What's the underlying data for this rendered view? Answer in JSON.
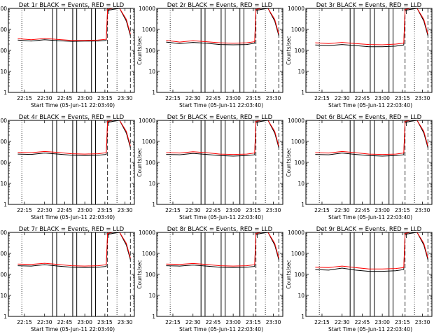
{
  "figure": {
    "x_axis_title": "Start Time (05-Jun-11 22:03:40)",
    "y_axis_title": "Counts/sec",
    "x_tick_labels": [
      "22:15",
      "22:30",
      "22:45",
      "23:00",
      "23:15",
      "23:30"
    ],
    "y_tick_labels": [
      "1",
      "10",
      "100",
      "1000",
      "10000"
    ],
    "colors": {
      "events": "#000000",
      "lld": "#ff0000",
      "axes": "#000000",
      "background": "#ffffff"
    }
  },
  "chart_data": [
    {
      "type": "line",
      "title": "Det 1r BLACK = Events, RED = LLD",
      "xlabel": "Start Time (05-Jun-11 22:03:40)",
      "ylabel": "Counts/sec",
      "y_scale": "log",
      "ylim": [
        1,
        10000
      ],
      "x": [
        "22:10",
        "22:20",
        "22:30",
        "22:40",
        "22:50",
        "23:00",
        "23:10",
        "23:16",
        "23:17",
        "23:21",
        "23:26",
        "23:31",
        "23:34"
      ],
      "series": [
        {
          "color": "#000000",
          "values": [
            310,
            280,
            320,
            290,
            270,
            275,
            280,
            300,
            8000,
            9000,
            10000,
            2500,
            500
          ]
        },
        {
          "color": "#ff0000",
          "values": [
            360,
            320,
            370,
            330,
            300,
            300,
            310,
            340,
            9000,
            10000,
            10000,
            3000,
            600
          ]
        }
      ]
    },
    {
      "type": "line",
      "title": "Det 2r BLACK = Events, RED = LLD",
      "xlabel": "Start Time (05-Jun-11 22:03:40)",
      "ylabel": "Counts/sec",
      "y_scale": "log",
      "ylim": [
        1,
        10000
      ],
      "x": [
        "22:10",
        "22:20",
        "22:30",
        "22:40",
        "22:50",
        "23:00",
        "23:10",
        "23:16",
        "23:17",
        "23:21",
        "23:26",
        "23:31",
        "23:34"
      ],
      "series": [
        {
          "color": "#000000",
          "values": [
            250,
            210,
            240,
            220,
            190,
            185,
            190,
            220,
            8000,
            9000,
            10000,
            2500,
            500
          ]
        },
        {
          "color": "#ff0000",
          "values": [
            300,
            250,
            290,
            260,
            230,
            220,
            230,
            260,
            9000,
            10000,
            10000,
            3000,
            600
          ]
        }
      ]
    },
    {
      "type": "line",
      "title": "Det 3r BLACK = Events, RED = LLD",
      "xlabel": "Start Time (05-Jun-11 22:03:40)",
      "ylabel": "Counts/sec",
      "y_scale": "log",
      "ylim": [
        1,
        10000
      ],
      "x": [
        "22:10",
        "22:20",
        "22:30",
        "22:40",
        "22:50",
        "23:00",
        "23:10",
        "23:16",
        "23:17",
        "23:21",
        "23:26",
        "23:31",
        "23:34"
      ],
      "series": [
        {
          "color": "#000000",
          "values": [
            180,
            170,
            190,
            170,
            150,
            150,
            160,
            180,
            8000,
            9000,
            10000,
            2500,
            500
          ]
        },
        {
          "color": "#ff0000",
          "values": [
            230,
            210,
            240,
            210,
            190,
            185,
            200,
            220,
            9000,
            10000,
            10000,
            3000,
            600
          ]
        }
      ]
    },
    {
      "type": "line",
      "title": "Det 4r BLACK = Events, RED = LLD",
      "xlabel": "Start Time (05-Jun-11 22:03:40)",
      "ylabel": "Counts/sec",
      "y_scale": "log",
      "ylim": [
        1,
        10000
      ],
      "x": [
        "22:10",
        "22:20",
        "22:30",
        "22:40",
        "22:50",
        "23:00",
        "23:10",
        "23:16",
        "23:17",
        "23:21",
        "23:26",
        "23:31",
        "23:34"
      ],
      "series": [
        {
          "color": "#000000",
          "values": [
            250,
            240,
            280,
            250,
            220,
            210,
            220,
            240,
            8000,
            9000,
            10000,
            2500,
            500
          ]
        },
        {
          "color": "#ff0000",
          "values": [
            300,
            290,
            330,
            300,
            260,
            250,
            260,
            290,
            9000,
            10000,
            10000,
            3000,
            600
          ]
        }
      ]
    },
    {
      "type": "line",
      "title": "Det 5r BLACK = Events, RED = LLD",
      "xlabel": "Start Time (05-Jun-11 22:03:40)",
      "ylabel": "Counts/sec",
      "y_scale": "log",
      "ylim": [
        1,
        10000
      ],
      "x": [
        "22:10",
        "22:20",
        "22:30",
        "22:40",
        "22:50",
        "23:00",
        "23:10",
        "23:16",
        "23:17",
        "23:21",
        "23:26",
        "23:31",
        "23:34"
      ],
      "series": [
        {
          "color": "#000000",
          "values": [
            240,
            230,
            270,
            240,
            210,
            200,
            210,
            230,
            8000,
            9000,
            10000,
            2500,
            500
          ]
        },
        {
          "color": "#ff0000",
          "values": [
            290,
            280,
            320,
            290,
            250,
            240,
            250,
            280,
            9000,
            10000,
            10000,
            3000,
            600
          ]
        }
      ]
    },
    {
      "type": "line",
      "title": "Det 6r BLACK = Events, RED = LLD",
      "xlabel": "Start Time (05-Jun-11 22:03:40)",
      "ylabel": "Counts/sec",
      "y_scale": "log",
      "ylim": [
        1,
        10000
      ],
      "x": [
        "22:10",
        "22:20",
        "22:30",
        "22:40",
        "22:50",
        "23:00",
        "23:10",
        "23:16",
        "23:17",
        "23:21",
        "23:26",
        "23:31",
        "23:34"
      ],
      "series": [
        {
          "color": "#000000",
          "values": [
            240,
            230,
            280,
            240,
            210,
            200,
            210,
            230,
            8000,
            9000,
            10000,
            2500,
            500
          ]
        },
        {
          "color": "#ff0000",
          "values": [
            290,
            280,
            330,
            290,
            250,
            240,
            250,
            280,
            9000,
            10000,
            10000,
            3000,
            600
          ]
        }
      ]
    },
    {
      "type": "line",
      "title": "Det 7r BLACK = Events, RED = LLD",
      "xlabel": "Start Time (05-Jun-11 22:03:40)",
      "ylabel": "Counts/sec",
      "y_scale": "log",
      "ylim": [
        1,
        10000
      ],
      "x": [
        "22:10",
        "22:20",
        "22:30",
        "22:40",
        "22:50",
        "23:00",
        "23:10",
        "23:16",
        "23:17",
        "23:21",
        "23:26",
        "23:31",
        "23:34"
      ],
      "series": [
        {
          "color": "#000000",
          "values": [
            260,
            250,
            290,
            250,
            220,
            210,
            220,
            240,
            8000,
            9000,
            10000,
            2500,
            500
          ]
        },
        {
          "color": "#ff0000",
          "values": [
            310,
            300,
            340,
            300,
            260,
            250,
            260,
            290,
            9000,
            10000,
            10000,
            3000,
            600
          ]
        }
      ]
    },
    {
      "type": "line",
      "title": "Det 8r BLACK = Events, RED = LLD",
      "xlabel": "Start Time (05-Jun-11 22:03:40)",
      "ylabel": "Counts/sec",
      "y_scale": "log",
      "ylim": [
        1,
        10000
      ],
      "x": [
        "22:10",
        "22:20",
        "22:30",
        "22:40",
        "22:50",
        "23:00",
        "23:10",
        "23:16",
        "23:17",
        "23:21",
        "23:26",
        "23:31",
        "23:34"
      ],
      "series": [
        {
          "color": "#000000",
          "values": [
            260,
            250,
            280,
            250,
            220,
            210,
            220,
            240,
            8000,
            9000,
            10000,
            2500,
            500
          ]
        },
        {
          "color": "#ff0000",
          "values": [
            310,
            300,
            330,
            300,
            260,
            250,
            260,
            290,
            9000,
            10000,
            10000,
            3000,
            600
          ]
        }
      ]
    },
    {
      "type": "line",
      "title": "Det 9r BLACK = Events, RED = LLD",
      "xlabel": "Start Time (05-Jun-11 22:03:40)",
      "ylabel": "Counts/sec",
      "y_scale": "log",
      "ylim": [
        1,
        10000
      ],
      "x": [
        "22:10",
        "22:20",
        "22:30",
        "22:40",
        "22:50",
        "23:00",
        "23:10",
        "23:16",
        "23:17",
        "23:21",
        "23:26",
        "23:31",
        "23:34"
      ],
      "series": [
        {
          "color": "#000000",
          "values": [
            170,
            160,
            200,
            160,
            140,
            140,
            150,
            170,
            8000,
            9000,
            10000,
            2500,
            500
          ]
        },
        {
          "color": "#ff0000",
          "values": [
            220,
            210,
            250,
            210,
            180,
            180,
            190,
            210,
            9000,
            10000,
            10000,
            3000,
            600
          ]
        }
      ]
    }
  ]
}
